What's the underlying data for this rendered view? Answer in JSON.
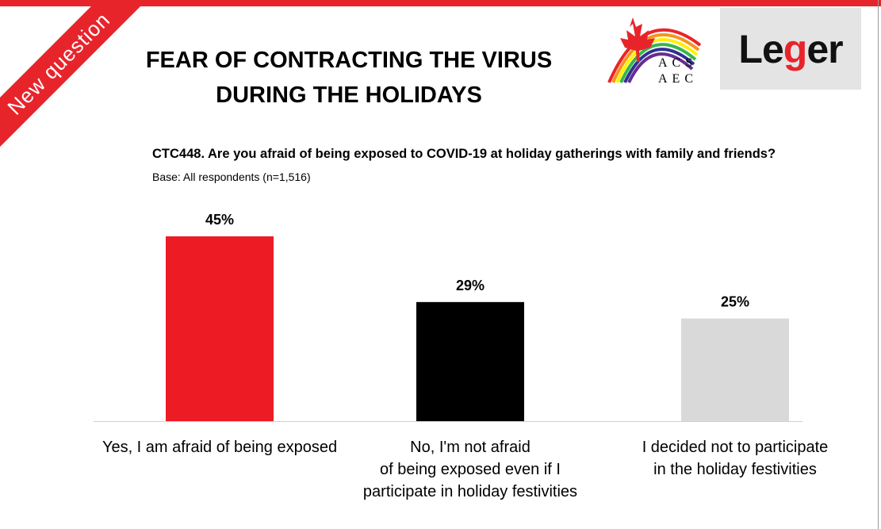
{
  "badge": {
    "label": "New question"
  },
  "title": {
    "line1": "FEAR OF CONTRACTING THE VIRUS",
    "line2": "DURING THE HOLIDAYS"
  },
  "logos": {
    "acs_line1": "ACS",
    "acs_line2": "AEC",
    "leger_prefix": "Le",
    "leger_g": "g",
    "leger_suffix": "er"
  },
  "question": "CTC448. Are you afraid of being exposed to COVID-19 at holiday gatherings with family and friends?",
  "base": "Base: All respondents (n=1,516)",
  "colors": {
    "accent": "#e8242b",
    "bar1": "#ed1c24",
    "bar2": "#000000",
    "bar3": "#d9d9d9"
  },
  "chart_data": {
    "type": "bar",
    "categories": [
      [
        "Yes, I am afraid of being exposed"
      ],
      [
        "No, I'm not afraid",
        "of being exposed even if I",
        "participate in holiday festivities"
      ],
      [
        "I decided not to participate",
        "in the holiday  festivities"
      ]
    ],
    "values": [
      45,
      29,
      25
    ],
    "value_labels": [
      "45%",
      "29%",
      "25%"
    ],
    "bar_colors": [
      "#ed1c24",
      "#000000",
      "#d9d9d9"
    ],
    "ylim": [
      0,
      50
    ],
    "grid": false
  }
}
